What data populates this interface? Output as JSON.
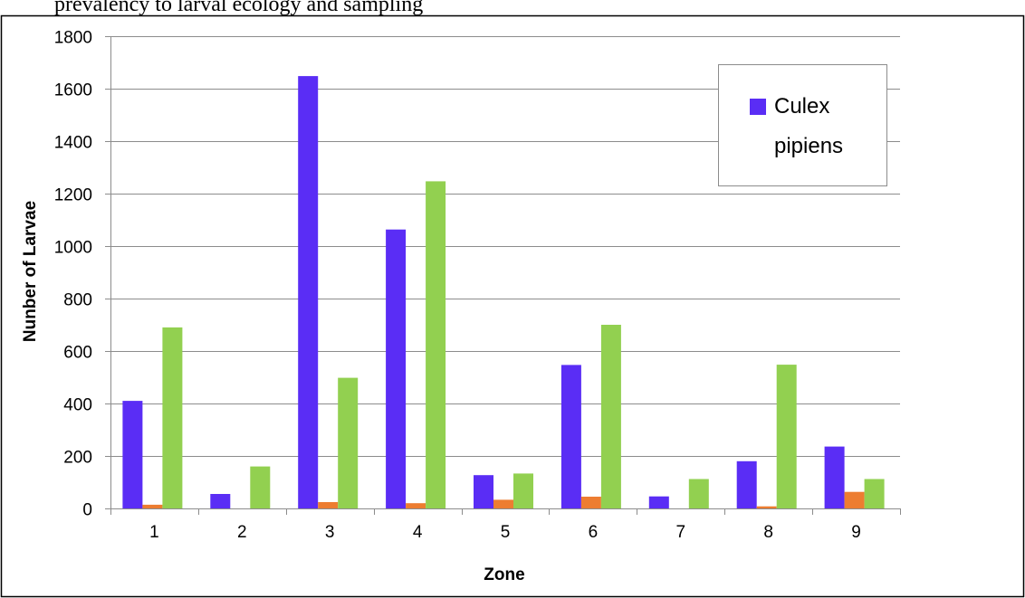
{
  "header_text": "   prevalency to larval ecology and sampling",
  "chart_data": {
    "type": "bar",
    "xlabel": "Zone",
    "ylabel": "Nunber of Larvae",
    "categories": [
      "1",
      "2",
      "3",
      "4",
      "5",
      "6",
      "7",
      "8",
      "9"
    ],
    "ylim": [
      0,
      1800
    ],
    "yticks": [
      "0",
      "200",
      "400",
      "600",
      "800",
      "1000",
      "1200",
      "1400",
      "1600",
      "1800"
    ],
    "grid": true,
    "legend_position": "top-right",
    "series": [
      {
        "name": "Culex pipiens",
        "color": "#5a2df5",
        "values": [
          410,
          55,
          1648,
          1063,
          127,
          547,
          46,
          180,
          236
        ]
      },
      {
        "color": "#ed7d31",
        "values": [
          14,
          0,
          24,
          20,
          33,
          45,
          0,
          8,
          63
        ]
      },
      {
        "color": "#92d050",
        "values": [
          690,
          160,
          498,
          1247,
          133,
          700,
          112,
          548,
          112
        ]
      }
    ],
    "legend": {
      "line1": "Culex",
      "line2": "pipiens"
    }
  }
}
